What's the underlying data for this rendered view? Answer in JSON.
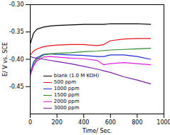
{
  "chart_data": {
    "type": "line",
    "x_label": "Time/ Sec.",
    "y_label": "E/ V vs. SCE",
    "x": [
      0,
      25,
      50,
      100,
      150,
      200,
      300,
      400,
      500,
      550,
      600,
      700,
      800,
      900
    ],
    "series": [
      {
        "name": "blank (1.0 M KOH)",
        "color": "#000000",
        "values": [
          -0.372,
          -0.352,
          -0.345,
          -0.341,
          -0.339,
          -0.338,
          -0.337,
          -0.336,
          -0.336,
          -0.336,
          -0.335,
          -0.335,
          -0.335,
          -0.336
        ]
      },
      {
        "name": "500 ppm",
        "color": "#e8141c",
        "values": [
          -0.392,
          -0.385,
          -0.381,
          -0.377,
          -0.375,
          -0.374,
          -0.373,
          -0.373,
          -0.375,
          -0.373,
          -0.366,
          -0.363,
          -0.362,
          -0.362
        ]
      },
      {
        "name": "1000 ppm",
        "color": "#1f2fd8",
        "values": [
          -0.425,
          -0.405,
          -0.397,
          -0.391,
          -0.39,
          -0.391,
          -0.392,
          -0.393,
          -0.395,
          -0.395,
          -0.392,
          -0.392,
          -0.395,
          -0.4
        ]
      },
      {
        "name": "1500 ppm",
        "color": "#2e8b2e",
        "values": [
          -0.428,
          -0.41,
          -0.4,
          -0.392,
          -0.39,
          -0.389,
          -0.388,
          -0.386,
          -0.385,
          -0.384,
          -0.383,
          -0.382,
          -0.381,
          -0.38
        ]
      },
      {
        "name": "2000 ppm",
        "color": "#e020e0",
        "values": [
          -0.43,
          -0.412,
          -0.403,
          -0.396,
          -0.395,
          -0.396,
          -0.398,
          -0.399,
          -0.402,
          -0.41,
          -0.408,
          -0.406,
          -0.408,
          -0.41
        ]
      },
      {
        "name": "3000 ppm",
        "color": "#7a1fa8",
        "values": [
          -0.395,
          -0.397,
          -0.398,
          -0.4,
          -0.402,
          -0.404,
          -0.408,
          -0.413,
          -0.418,
          -0.421,
          -0.424,
          -0.432,
          -0.438,
          -0.445
        ]
      }
    ],
    "xlim": [
      0,
      1000
    ],
    "xticks": [
      0,
      200,
      400,
      600,
      800,
      1000
    ],
    "ylim": [
      -0.5,
      -0.3
    ],
    "yticks": [
      -0.45,
      {
        "value": -0.4,
        "label": "-0.40"
      },
      -0.35,
      {
        "value": -0.3,
        "label": "-0.30"
      }
    ],
    "legend": "bottom",
    "grid": false
  }
}
